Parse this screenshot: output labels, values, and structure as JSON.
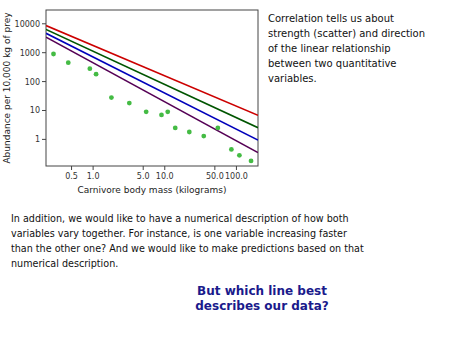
{
  "chart_data": {
    "type": "scatter",
    "log": true,
    "x_label": "Carnivore body mass (kilograms)",
    "y_label": "Abundance per 10,000 kg of prey",
    "xlim": [
      0.22,
      200.0
    ],
    "ylim": [
      0.12,
      30000
    ],
    "xticks": [
      0.5,
      {
        "value": 1.0,
        "label": "1.0"
      },
      {
        "value": 5.0,
        "label": "5.0"
      },
      {
        "value": 10.0,
        "label": "10.0"
      },
      {
        "value": 50.0,
        "label": "50.0"
      },
      {
        "value": 100.0,
        "label": "100.0"
      }
    ],
    "yticks": [
      1,
      10,
      100,
      1000,
      10000
    ],
    "series": [
      {
        "type": "scatter",
        "color": "#44bb44",
        "x": [
          0.28,
          0.45,
          0.9,
          1.1,
          1.8,
          3.2,
          5.5,
          9.0,
          11.0,
          14.0,
          22.0,
          35.0,
          55.0,
          85.0,
          110.0,
          160.0
        ],
        "values": [
          900,
          450,
          280,
          180,
          28,
          18,
          9,
          7,
          9,
          2.5,
          1.8,
          1.3,
          2.5,
          0.45,
          0.28,
          0.18
        ]
      },
      {
        "type": "line",
        "color": "#cc0000",
        "x": [
          0.22,
          200.0
        ],
        "values": [
          8718.8,
          6.822
        ]
      },
      {
        "type": "line",
        "color": "#005500",
        "x": [
          0.22,
          200.0
        ],
        "values": [
          6400.5,
          2.534
        ]
      },
      {
        "type": "line",
        "color": "#0000bb",
        "x": [
          0.22,
          200.0
        ],
        "values": [
          4698.6,
          0.94126
        ]
      },
      {
        "type": "line",
        "color": "#550055",
        "x": [
          0.22,
          200.0
        ],
        "values": [
          3449.3,
          0.34963
        ]
      }
    ],
    "annotations": [
      {
        "text": "Correlation tells us about\nstrength (scatter) and direction\nof the linear relationship\nbetween two quantitative\nvariables."
      },
      {
        "text": "In addition, we would like to have a numerical description of how both\nvariables vary together. For instance, is one variable increasing faster\nthan the other one? And we would like to make predictions based on that\nnumerical description."
      },
      {
        "text": "But which line best\ndescribes our data?",
        "color": "#1a1a8c"
      }
    ]
  }
}
